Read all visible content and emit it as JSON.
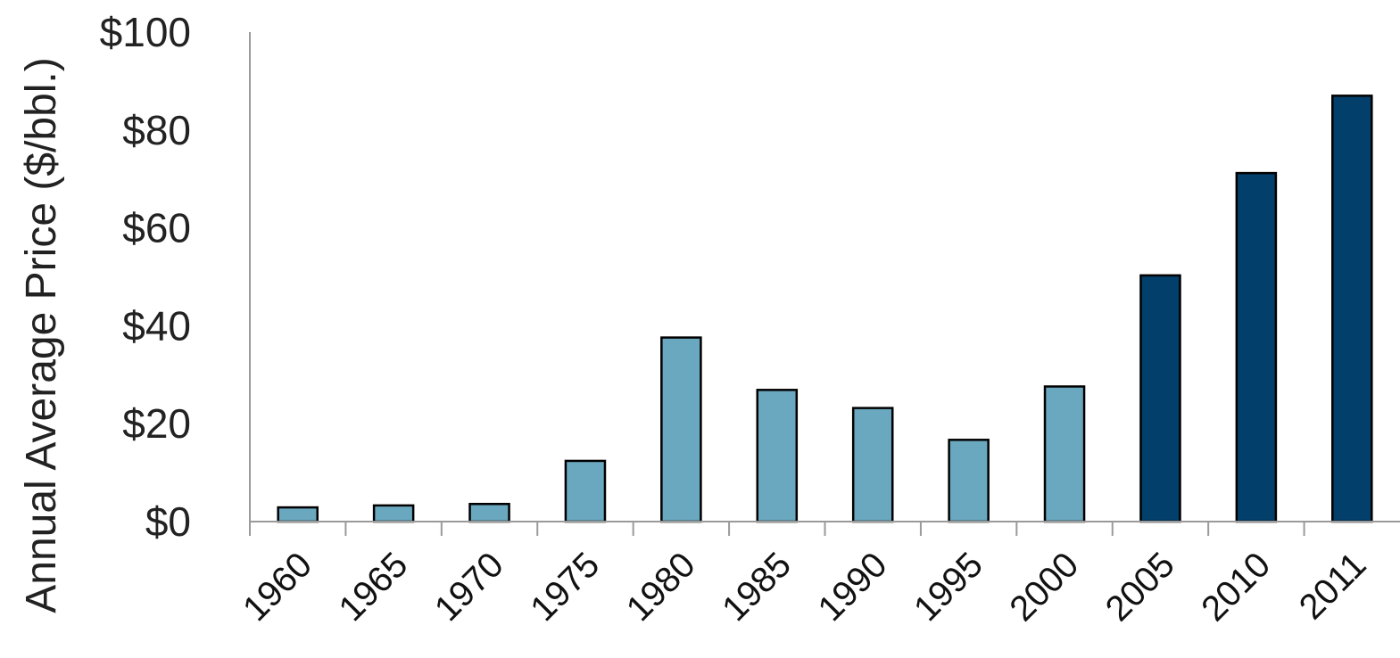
{
  "chart_data": {
    "type": "bar",
    "ylabel": "Annual Average Price ($/bbl.)",
    "categories": [
      "1960",
      "1965",
      "1970",
      "1975",
      "1980",
      "1985",
      "1990",
      "1995",
      "2000",
      "2005",
      "2010",
      "2011"
    ],
    "series": [
      {
        "values": [
          2.9,
          3.3,
          3.6,
          12.4,
          37.6,
          26.9,
          23.2,
          16.7,
          27.6,
          50.3,
          71.2,
          87.0
        ]
      }
    ],
    "ylim": [
      0,
      100
    ],
    "yticks": [
      "$0",
      "$20",
      "$40",
      "$60",
      "$80",
      "$100"
    ],
    "grid": false,
    "legend": "none",
    "colors": {
      "historical": "#6aa8c0",
      "recent": "#023f6a",
      "bar_outline": "#000000",
      "axis": "#9a9a9a"
    },
    "recent_from": "2005"
  }
}
